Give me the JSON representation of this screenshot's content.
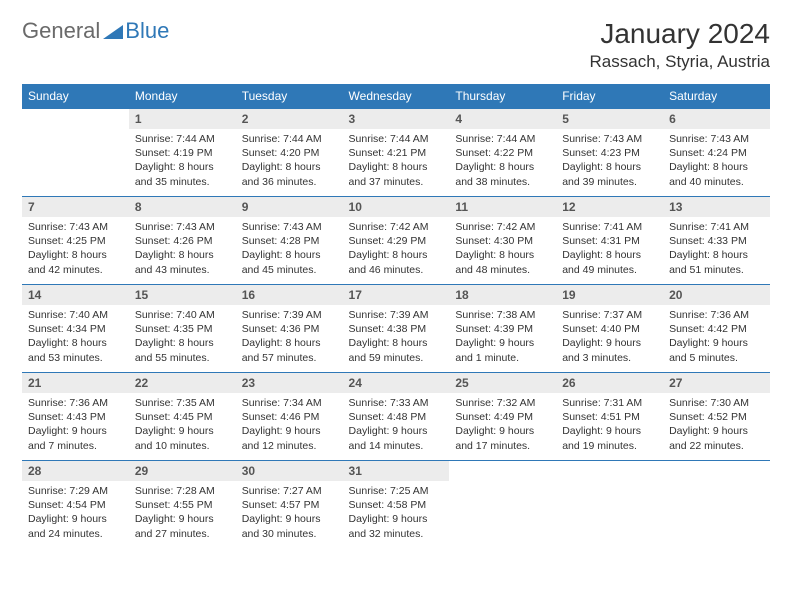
{
  "logo": {
    "text1": "General",
    "text2": "Blue",
    "icon_color": "#2f78b7"
  },
  "title": "January 2024",
  "location": "Rassach, Styria, Austria",
  "header_bg": "#2f78b7",
  "header_fg": "#ffffff",
  "daynum_bg": "#ececec",
  "rule_color": "#2f78b7",
  "weekdays": [
    "Sunday",
    "Monday",
    "Tuesday",
    "Wednesday",
    "Thursday",
    "Friday",
    "Saturday"
  ],
  "weeks": [
    [
      {
        "n": "",
        "lines": []
      },
      {
        "n": "1",
        "lines": [
          "Sunrise: 7:44 AM",
          "Sunset: 4:19 PM",
          "Daylight: 8 hours",
          "and 35 minutes."
        ]
      },
      {
        "n": "2",
        "lines": [
          "Sunrise: 7:44 AM",
          "Sunset: 4:20 PM",
          "Daylight: 8 hours",
          "and 36 minutes."
        ]
      },
      {
        "n": "3",
        "lines": [
          "Sunrise: 7:44 AM",
          "Sunset: 4:21 PM",
          "Daylight: 8 hours",
          "and 37 minutes."
        ]
      },
      {
        "n": "4",
        "lines": [
          "Sunrise: 7:44 AM",
          "Sunset: 4:22 PM",
          "Daylight: 8 hours",
          "and 38 minutes."
        ]
      },
      {
        "n": "5",
        "lines": [
          "Sunrise: 7:43 AM",
          "Sunset: 4:23 PM",
          "Daylight: 8 hours",
          "and 39 minutes."
        ]
      },
      {
        "n": "6",
        "lines": [
          "Sunrise: 7:43 AM",
          "Sunset: 4:24 PM",
          "Daylight: 8 hours",
          "and 40 minutes."
        ]
      }
    ],
    [
      {
        "n": "7",
        "lines": [
          "Sunrise: 7:43 AM",
          "Sunset: 4:25 PM",
          "Daylight: 8 hours",
          "and 42 minutes."
        ]
      },
      {
        "n": "8",
        "lines": [
          "Sunrise: 7:43 AM",
          "Sunset: 4:26 PM",
          "Daylight: 8 hours",
          "and 43 minutes."
        ]
      },
      {
        "n": "9",
        "lines": [
          "Sunrise: 7:43 AM",
          "Sunset: 4:28 PM",
          "Daylight: 8 hours",
          "and 45 minutes."
        ]
      },
      {
        "n": "10",
        "lines": [
          "Sunrise: 7:42 AM",
          "Sunset: 4:29 PM",
          "Daylight: 8 hours",
          "and 46 minutes."
        ]
      },
      {
        "n": "11",
        "lines": [
          "Sunrise: 7:42 AM",
          "Sunset: 4:30 PM",
          "Daylight: 8 hours",
          "and 48 minutes."
        ]
      },
      {
        "n": "12",
        "lines": [
          "Sunrise: 7:41 AM",
          "Sunset: 4:31 PM",
          "Daylight: 8 hours",
          "and 49 minutes."
        ]
      },
      {
        "n": "13",
        "lines": [
          "Sunrise: 7:41 AM",
          "Sunset: 4:33 PM",
          "Daylight: 8 hours",
          "and 51 minutes."
        ]
      }
    ],
    [
      {
        "n": "14",
        "lines": [
          "Sunrise: 7:40 AM",
          "Sunset: 4:34 PM",
          "Daylight: 8 hours",
          "and 53 minutes."
        ]
      },
      {
        "n": "15",
        "lines": [
          "Sunrise: 7:40 AM",
          "Sunset: 4:35 PM",
          "Daylight: 8 hours",
          "and 55 minutes."
        ]
      },
      {
        "n": "16",
        "lines": [
          "Sunrise: 7:39 AM",
          "Sunset: 4:36 PM",
          "Daylight: 8 hours",
          "and 57 minutes."
        ]
      },
      {
        "n": "17",
        "lines": [
          "Sunrise: 7:39 AM",
          "Sunset: 4:38 PM",
          "Daylight: 8 hours",
          "and 59 minutes."
        ]
      },
      {
        "n": "18",
        "lines": [
          "Sunrise: 7:38 AM",
          "Sunset: 4:39 PM",
          "Daylight: 9 hours",
          "and 1 minute."
        ]
      },
      {
        "n": "19",
        "lines": [
          "Sunrise: 7:37 AM",
          "Sunset: 4:40 PM",
          "Daylight: 9 hours",
          "and 3 minutes."
        ]
      },
      {
        "n": "20",
        "lines": [
          "Sunrise: 7:36 AM",
          "Sunset: 4:42 PM",
          "Daylight: 9 hours",
          "and 5 minutes."
        ]
      }
    ],
    [
      {
        "n": "21",
        "lines": [
          "Sunrise: 7:36 AM",
          "Sunset: 4:43 PM",
          "Daylight: 9 hours",
          "and 7 minutes."
        ]
      },
      {
        "n": "22",
        "lines": [
          "Sunrise: 7:35 AM",
          "Sunset: 4:45 PM",
          "Daylight: 9 hours",
          "and 10 minutes."
        ]
      },
      {
        "n": "23",
        "lines": [
          "Sunrise: 7:34 AM",
          "Sunset: 4:46 PM",
          "Daylight: 9 hours",
          "and 12 minutes."
        ]
      },
      {
        "n": "24",
        "lines": [
          "Sunrise: 7:33 AM",
          "Sunset: 4:48 PM",
          "Daylight: 9 hours",
          "and 14 minutes."
        ]
      },
      {
        "n": "25",
        "lines": [
          "Sunrise: 7:32 AM",
          "Sunset: 4:49 PM",
          "Daylight: 9 hours",
          "and 17 minutes."
        ]
      },
      {
        "n": "26",
        "lines": [
          "Sunrise: 7:31 AM",
          "Sunset: 4:51 PM",
          "Daylight: 9 hours",
          "and 19 minutes."
        ]
      },
      {
        "n": "27",
        "lines": [
          "Sunrise: 7:30 AM",
          "Sunset: 4:52 PM",
          "Daylight: 9 hours",
          "and 22 minutes."
        ]
      }
    ],
    [
      {
        "n": "28",
        "lines": [
          "Sunrise: 7:29 AM",
          "Sunset: 4:54 PM",
          "Daylight: 9 hours",
          "and 24 minutes."
        ]
      },
      {
        "n": "29",
        "lines": [
          "Sunrise: 7:28 AM",
          "Sunset: 4:55 PM",
          "Daylight: 9 hours",
          "and 27 minutes."
        ]
      },
      {
        "n": "30",
        "lines": [
          "Sunrise: 7:27 AM",
          "Sunset: 4:57 PM",
          "Daylight: 9 hours",
          "and 30 minutes."
        ]
      },
      {
        "n": "31",
        "lines": [
          "Sunrise: 7:25 AM",
          "Sunset: 4:58 PM",
          "Daylight: 9 hours",
          "and 32 minutes."
        ]
      },
      {
        "n": "",
        "lines": []
      },
      {
        "n": "",
        "lines": []
      },
      {
        "n": "",
        "lines": []
      }
    ]
  ]
}
